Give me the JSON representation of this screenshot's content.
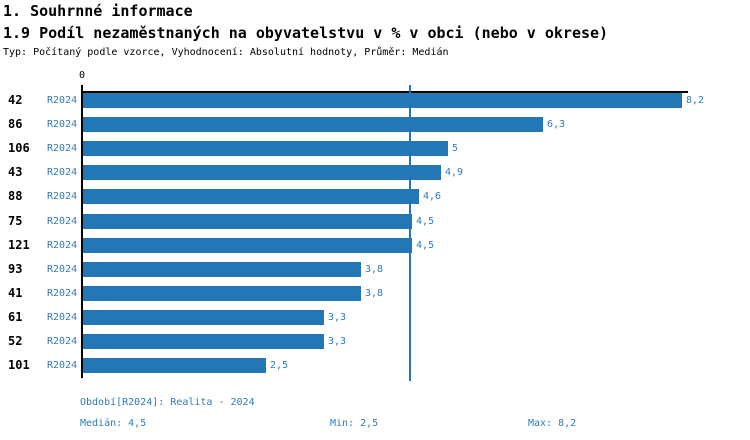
{
  "header": {
    "title": "1. Souhrnné informace",
    "subtitle": "1.9 Podíl nezaměstnaných na obyvatelstvu v % v obci (nebo v okrese)",
    "meta": "Typ: Počítaný podle vzorce, Vyhodnocení: Absolutní hodnoty, Průměr: Medián"
  },
  "chart": {
    "zero_label": "0"
  },
  "chart_data": {
    "type": "bar",
    "orientation": "horizontal",
    "title": "1.9 Podíl nezaměstnaných na obyvatelstvu v % v obci (nebo v okrese)",
    "categories": [
      "42",
      "86",
      "106",
      "43",
      "88",
      "75",
      "121",
      "93",
      "41",
      "61",
      "52",
      "101"
    ],
    "series_label": "R2024",
    "values": [
      8.2,
      6.3,
      5,
      4.9,
      4.6,
      4.5,
      4.5,
      3.8,
      3.8,
      3.3,
      3.3,
      2.5
    ],
    "value_labels": [
      "8,2",
      "6,3",
      "5",
      "4,9",
      "4,6",
      "4,5",
      "4,5",
      "3,8",
      "3,8",
      "3,3",
      "3,3",
      "2,5"
    ],
    "xlabel": "",
    "ylabel": "",
    "xlim": [
      0,
      8.2
    ],
    "grid": false,
    "median_reference_line": 4.5,
    "colors": {
      "bar": "#2377b4",
      "blue_text": "#2e7cb8",
      "median_line": "#2377b4",
      "axis": "#000000"
    }
  },
  "footer": {
    "period": "Období[R2024]: Realita - 2024",
    "median": "Medián: 4,5",
    "min": "Min: 2,5",
    "max": "Max: 8,2"
  }
}
